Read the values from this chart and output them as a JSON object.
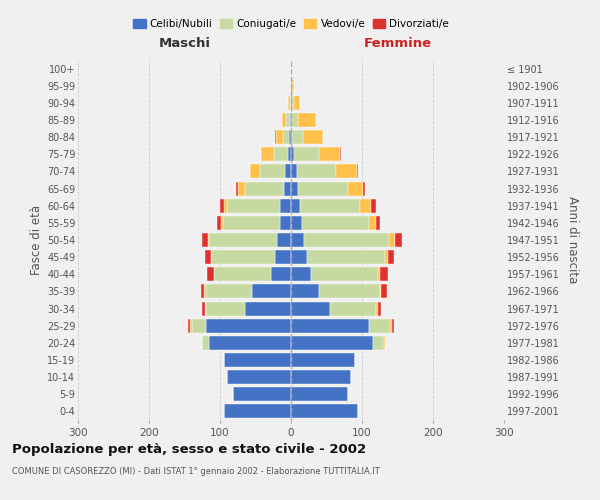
{
  "age_groups": [
    "0-4",
    "5-9",
    "10-14",
    "15-19",
    "20-24",
    "25-29",
    "30-34",
    "35-39",
    "40-44",
    "45-49",
    "50-54",
    "55-59",
    "60-64",
    "65-69",
    "70-74",
    "75-79",
    "80-84",
    "85-89",
    "90-94",
    "95-99",
    "100+"
  ],
  "birth_years": [
    "1997-2001",
    "1992-1996",
    "1987-1991",
    "1982-1986",
    "1977-1981",
    "1972-1976",
    "1967-1971",
    "1962-1966",
    "1957-1961",
    "1952-1956",
    "1947-1951",
    "1942-1946",
    "1937-1941",
    "1932-1936",
    "1927-1931",
    "1922-1926",
    "1917-1921",
    "1912-1916",
    "1907-1911",
    "1902-1906",
    "≤ 1901"
  ],
  "maschi": {
    "celibi": [
      95,
      82,
      90,
      95,
      115,
      120,
      65,
      55,
      28,
      22,
      20,
      16,
      15,
      10,
      8,
      4,
      3,
      2,
      0,
      0,
      0
    ],
    "coniugati": [
      0,
      0,
      0,
      0,
      10,
      20,
      55,
      65,
      80,
      90,
      95,
      80,
      75,
      55,
      35,
      20,
      8,
      5,
      2,
      0,
      0
    ],
    "vedovi": [
      0,
      0,
      0,
      0,
      0,
      2,
      1,
      2,
      1,
      1,
      2,
      3,
      5,
      10,
      15,
      18,
      10,
      5,
      2,
      0,
      0
    ],
    "divorziati": [
      0,
      0,
      0,
      0,
      0,
      3,
      5,
      5,
      10,
      8,
      8,
      5,
      5,
      2,
      0,
      0,
      2,
      0,
      0,
      0,
      0
    ]
  },
  "femmine": {
    "nubili": [
      95,
      80,
      85,
      90,
      115,
      110,
      55,
      40,
      28,
      22,
      18,
      15,
      12,
      10,
      8,
      4,
      2,
      2,
      2,
      2,
      0
    ],
    "coniugate": [
      0,
      0,
      0,
      0,
      15,
      30,
      65,
      85,
      95,
      110,
      120,
      95,
      85,
      70,
      55,
      35,
      15,
      8,
      2,
      0,
      0
    ],
    "vedove": [
      0,
      0,
      0,
      0,
      2,
      2,
      2,
      2,
      3,
      5,
      8,
      10,
      15,
      22,
      30,
      30,
      28,
      25,
      8,
      2,
      0
    ],
    "divorziate": [
      0,
      0,
      0,
      0,
      0,
      3,
      5,
      8,
      10,
      8,
      10,
      5,
      8,
      2,
      2,
      2,
      0,
      0,
      0,
      0,
      0
    ]
  },
  "colors": {
    "celibi_nubili": "#4472c4",
    "coniugati": "#c5d9a0",
    "vedovi": "#ffc04c",
    "divorziati": "#e03030"
  },
  "xlim": 300,
  "title": "Popolazione per età, sesso e stato civile - 2002",
  "subtitle": "COMUNE DI CASOREZZO (MI) - Dati ISTAT 1° gennaio 2002 - Elaborazione TUTTITALIA.IT",
  "ylabel": "Fasce di età",
  "ylabel_right": "Anni di nascita",
  "xlabel_left": "Maschi",
  "xlabel_right": "Femmine",
  "legend_labels": [
    "Celibi/Nubili",
    "Coniugati/e",
    "Vedovi/e",
    "Divorziati/e"
  ],
  "bg_color": "#f0f0f0",
  "grid_color": "#cccccc"
}
